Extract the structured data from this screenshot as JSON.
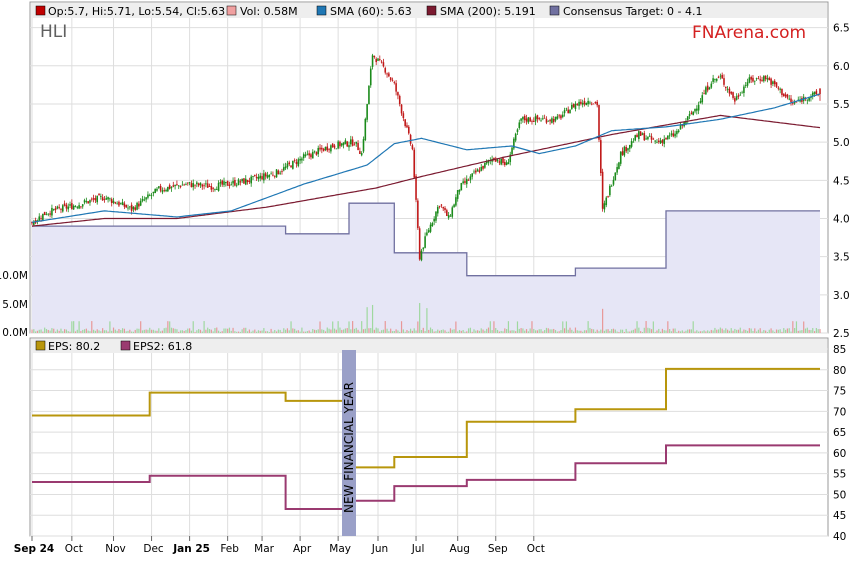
{
  "header": {
    "ticker": "HLI",
    "brand": "FNArena.com",
    "legend": [
      {
        "label": "Op:5.7, Hi:5.71, Lo:5.54, Cl:5.63",
        "color": "#c00000"
      },
      {
        "label": "Vol: 0.58M",
        "color": "#f0a0a0"
      },
      {
        "label": "SMA (60): 5.63",
        "color": "#1f77b4"
      },
      {
        "label": "SMA (200): 5.191",
        "color": "#7b1a30"
      },
      {
        "label": "Consensus Target: 0 - 4.1",
        "color": "#7070a0"
      }
    ]
  },
  "eps_panel": {
    "legend": [
      {
        "label": "EPS: 80.2",
        "color": "#b8960c"
      },
      {
        "label": "EPS2: 61.8",
        "color": "#9a3a70"
      }
    ],
    "annotation": "NEW FINANCIAL YEAR"
  },
  "chart_data": [
    {
      "type": "candlestick",
      "ylim": [
        2.5,
        6.6
      ],
      "y_ticks": [
        "6.5",
        "6.0",
        "5.5",
        "5.0",
        "4.5",
        "4.0",
        "3.5",
        "3.0",
        "2.5"
      ],
      "volume_ticks": [
        "10.0M",
        "5.0M",
        "0.0M"
      ],
      "x_ticks": [
        "Sep 24",
        "Oct",
        "Nov",
        "Dec",
        "Jan 25",
        "Feb",
        "Mar",
        "Apr",
        "May",
        "Jun",
        "Jul",
        "Aug",
        "Sep",
        "Oct"
      ],
      "price_anchors": [
        [
          0,
          3.95
        ],
        [
          8,
          4.08
        ],
        [
          20,
          4.15
        ],
        [
          40,
          4.28
        ],
        [
          55,
          4.12
        ],
        [
          70,
          4.38
        ],
        [
          85,
          4.45
        ],
        [
          100,
          4.42
        ],
        [
          120,
          4.5
        ],
        [
          135,
          4.6
        ],
        [
          150,
          4.8
        ],
        [
          165,
          4.95
        ],
        [
          178,
          5.0
        ],
        [
          182,
          4.85
        ],
        [
          185,
          5.5
        ],
        [
          188,
          6.15
        ],
        [
          195,
          5.95
        ],
        [
          200,
          5.75
        ],
        [
          203,
          5.5
        ],
        [
          210,
          4.9
        ],
        [
          214,
          3.5
        ],
        [
          218,
          3.8
        ],
        [
          225,
          4.2
        ],
        [
          230,
          4.0
        ],
        [
          236,
          4.4
        ],
        [
          245,
          4.6
        ],
        [
          255,
          4.8
        ],
        [
          262,
          4.7
        ],
        [
          270,
          5.3
        ],
        [
          280,
          5.3
        ],
        [
          290,
          5.3
        ],
        [
          300,
          5.5
        ],
        [
          308,
          5.55
        ],
        [
          312,
          5.5
        ],
        [
          315,
          4.1
        ],
        [
          319,
          4.4
        ],
        [
          325,
          4.85
        ],
        [
          335,
          5.1
        ],
        [
          345,
          5.0
        ],
        [
          355,
          5.1
        ],
        [
          365,
          5.4
        ],
        [
          375,
          5.8
        ],
        [
          380,
          5.85
        ],
        [
          388,
          5.55
        ],
        [
          395,
          5.8
        ],
        [
          405,
          5.85
        ],
        [
          412,
          5.7
        ],
        [
          420,
          5.5
        ],
        [
          428,
          5.6
        ],
        [
          435,
          5.63
        ]
      ],
      "last": {
        "open": 5.7,
        "high": 5.71,
        "low": 5.54,
        "close": 5.63,
        "volume": "0.58M"
      },
      "sma60_anchors": [
        [
          0,
          3.95
        ],
        [
          40,
          4.1
        ],
        [
          80,
          4.02
        ],
        [
          110,
          4.1
        ],
        [
          150,
          4.45
        ],
        [
          185,
          4.7
        ],
        [
          200,
          4.98
        ],
        [
          215,
          5.05
        ],
        [
          240,
          4.9
        ],
        [
          265,
          4.95
        ],
        [
          280,
          4.85
        ],
        [
          300,
          4.95
        ],
        [
          320,
          5.15
        ],
        [
          350,
          5.2
        ],
        [
          380,
          5.3
        ],
        [
          410,
          5.45
        ],
        [
          435,
          5.63
        ]
      ],
      "sma200_anchors": [
        [
          0,
          3.9
        ],
        [
          40,
          4.0
        ],
        [
          80,
          4.0
        ],
        [
          130,
          4.15
        ],
        [
          190,
          4.4
        ],
        [
          215,
          4.55
        ],
        [
          260,
          4.8
        ],
        [
          320,
          5.1
        ],
        [
          380,
          5.35
        ],
        [
          435,
          5.19
        ]
      ],
      "consensus_target_steps": [
        [
          0,
          3.9
        ],
        [
          140,
          3.9
        ],
        [
          140,
          3.8
        ],
        [
          175,
          3.8
        ],
        [
          175,
          4.2
        ],
        [
          200,
          4.2
        ],
        [
          200,
          3.55
        ],
        [
          240,
          3.55
        ],
        [
          240,
          3.25
        ],
        [
          300,
          3.25
        ],
        [
          300,
          3.35
        ],
        [
          350,
          3.35
        ],
        [
          350,
          4.1
        ],
        [
          435,
          4.1
        ]
      ]
    },
    {
      "type": "line",
      "ylim": [
        40,
        85
      ],
      "y_ticks": [
        "85",
        "80",
        "75",
        "70",
        "65",
        "60",
        "55",
        "50",
        "45",
        "40"
      ],
      "series": [
        {
          "name": "EPS",
          "steps": [
            [
              0,
              69
            ],
            [
              65,
              69
            ],
            [
              65,
              74.5
            ],
            [
              140,
              74.5
            ],
            [
              140,
              72.5
            ],
            [
              175,
              72.5
            ],
            [
              175,
              56.5
            ],
            [
              200,
              56.5
            ],
            [
              200,
              59
            ],
            [
              240,
              59
            ],
            [
              240,
              67.5
            ],
            [
              300,
              67.5
            ],
            [
              300,
              70.5
            ],
            [
              350,
              70.5
            ],
            [
              350,
              80.2
            ],
            [
              435,
              80.2
            ]
          ]
        },
        {
          "name": "EPS2",
          "steps": [
            [
              0,
              53
            ],
            [
              65,
              53
            ],
            [
              65,
              54.5
            ],
            [
              140,
              54.5
            ],
            [
              140,
              46.5
            ],
            [
              175,
              46.5
            ],
            [
              175,
              48.5
            ],
            [
              200,
              48.5
            ],
            [
              200,
              52
            ],
            [
              240,
              52
            ],
            [
              240,
              53.5
            ],
            [
              300,
              53.5
            ],
            [
              300,
              57.5
            ],
            [
              350,
              57.5
            ],
            [
              350,
              61.8
            ],
            [
              435,
              61.8
            ]
          ]
        }
      ],
      "annotation_index": 175
    }
  ]
}
